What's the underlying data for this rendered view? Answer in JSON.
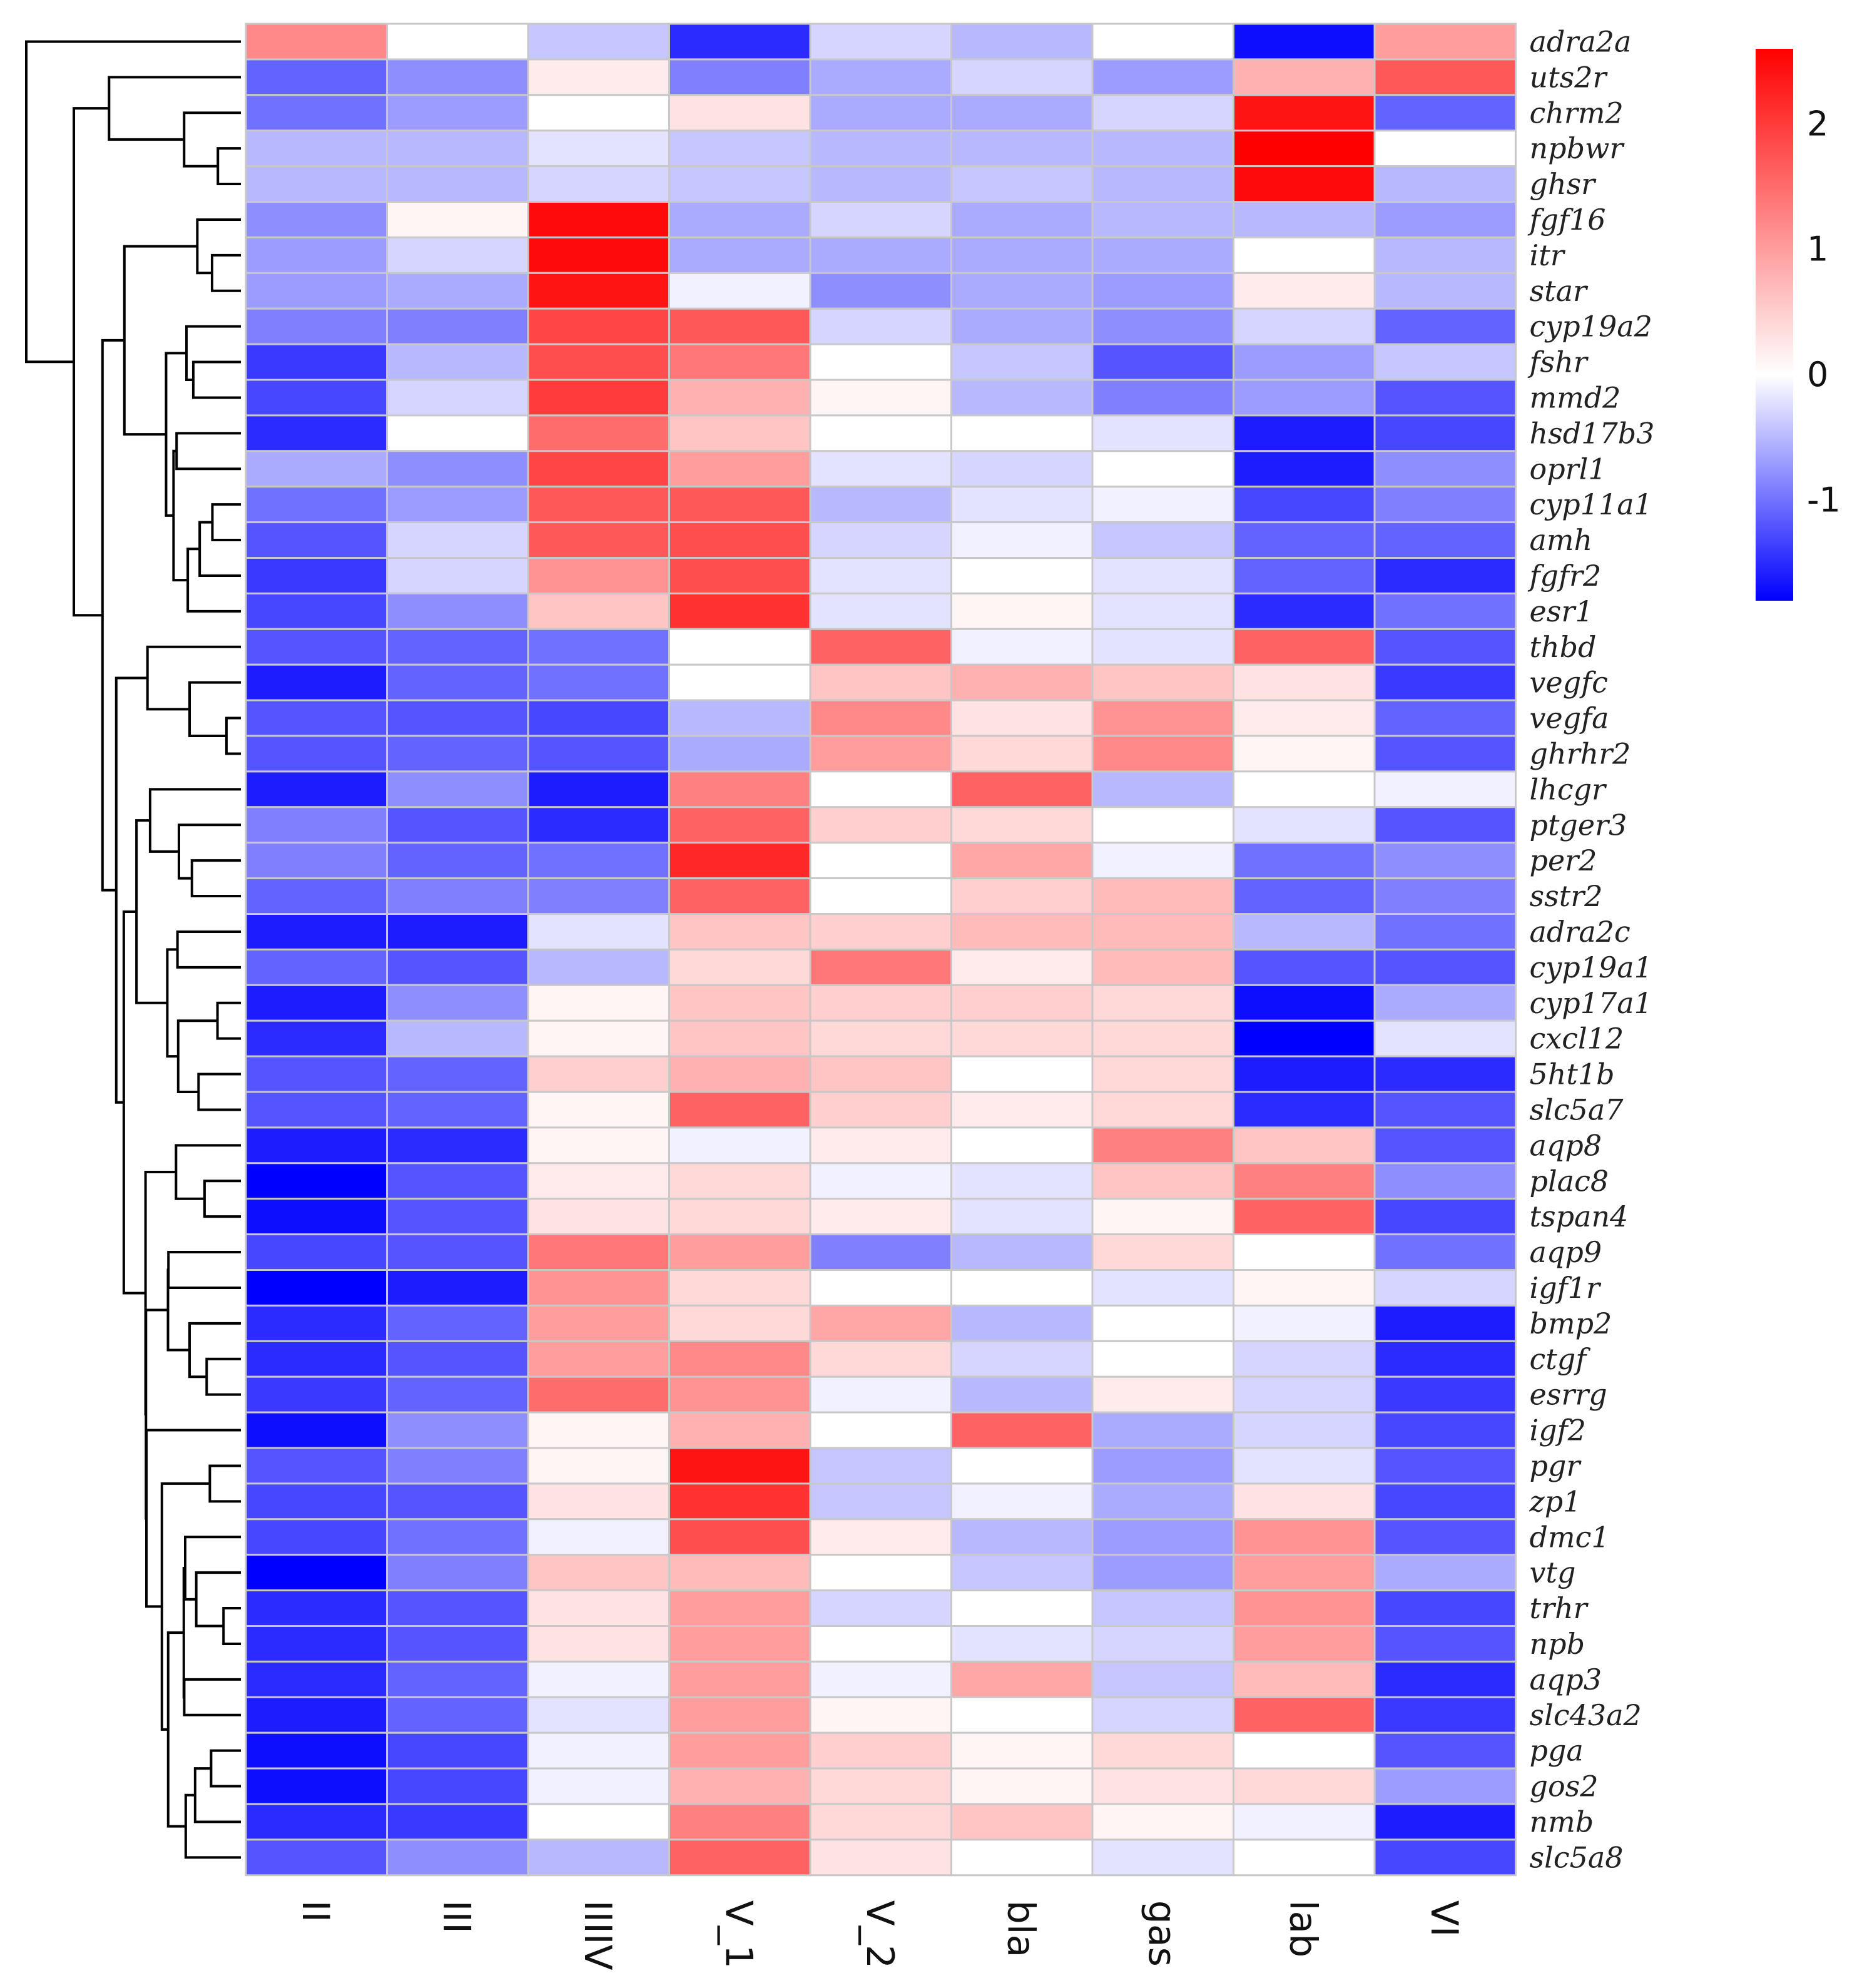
{
  "chart_data": {
    "type": "heatmap",
    "title": "",
    "columns": [
      "II",
      "III",
      "IIIIV",
      "V_1",
      "V_2",
      "bla",
      "gas",
      "lab",
      "VI"
    ],
    "rows": [
      "adra2a",
      "uts2r",
      "chrm2",
      "npbwr",
      "ghsr",
      "fgf16",
      "itr",
      "star",
      "cyp19a2",
      "fshr",
      "mmd2",
      "hsd17b3",
      "oprl1",
      "cyp11a1",
      "amh",
      "fgfr2",
      "esr1",
      "thbd",
      "vegfc",
      "vegfa",
      "ghrhr2",
      "lhcgr",
      "ptger3",
      "per2",
      "sstr2",
      "adra2c",
      "cyp19a1",
      "cyp17a1",
      "cxcl12",
      "5ht1b",
      "slc5a7",
      "aqp8",
      "plac8",
      "tspan4",
      "aqp9",
      "igf1r",
      "bmp2",
      "ctgf",
      "esrrg",
      "igf2",
      "pgr",
      "zp1",
      "dmc1",
      "vtg",
      "trhr",
      "npb",
      "aqp3",
      "slc43a2",
      "pga",
      "gos2",
      "nmb",
      "slc5a8"
    ],
    "values": [
      [
        1.2,
        0.0,
        -0.4,
        -1.5,
        -0.3,
        -0.5,
        0.0,
        -1.7,
        1.0
      ],
      [
        -1.1,
        -0.8,
        0.2,
        -0.9,
        -0.6,
        -0.3,
        -0.7,
        0.8,
        1.7
      ],
      [
        -1.0,
        -0.7,
        0.0,
        0.3,
        -0.6,
        -0.6,
        -0.3,
        2.4,
        -1.1
      ],
      [
        -0.5,
        -0.5,
        -0.2,
        -0.4,
        -0.5,
        -0.5,
        -0.5,
        2.6,
        0.0
      ],
      [
        -0.5,
        -0.5,
        -0.3,
        -0.4,
        -0.5,
        -0.4,
        -0.5,
        2.5,
        -0.5
      ],
      [
        -0.8,
        0.1,
        2.5,
        -0.6,
        -0.3,
        -0.6,
        -0.5,
        -0.5,
        -0.7
      ],
      [
        -0.7,
        -0.3,
        2.5,
        -0.6,
        -0.6,
        -0.6,
        -0.6,
        0.0,
        -0.5
      ],
      [
        -0.7,
        -0.6,
        2.4,
        -0.1,
        -0.8,
        -0.6,
        -0.7,
        0.2,
        -0.5
      ],
      [
        -0.9,
        -0.9,
        1.9,
        1.7,
        -0.3,
        -0.6,
        -0.8,
        -0.3,
        -1.1
      ],
      [
        -1.4,
        -0.5,
        1.8,
        1.4,
        0.0,
        -0.4,
        -1.2,
        -0.7,
        -0.4
      ],
      [
        -1.3,
        -0.3,
        2.0,
        0.8,
        0.1,
        -0.5,
        -0.9,
        -0.7,
        -1.2
      ],
      [
        -1.5,
        0.0,
        1.5,
        0.6,
        0.0,
        0.0,
        -0.2,
        -1.6,
        -1.3
      ],
      [
        -0.6,
        -0.8,
        1.9,
        1.0,
        -0.2,
        -0.3,
        0.0,
        -1.6,
        -0.8
      ],
      [
        -1.0,
        -0.7,
        1.7,
        1.7,
        -0.5,
        -0.2,
        -0.1,
        -1.3,
        -0.9
      ],
      [
        -1.2,
        -0.3,
        1.7,
        1.8,
        -0.3,
        -0.1,
        -0.4,
        -1.1,
        -1.1
      ],
      [
        -1.4,
        -0.3,
        1.1,
        1.8,
        -0.2,
        0.0,
        -0.2,
        -1.1,
        -1.5
      ],
      [
        -1.3,
        -0.8,
        0.6,
        2.1,
        -0.2,
        0.1,
        -0.2,
        -1.5,
        -1.0
      ],
      [
        -1.2,
        -1.1,
        -1.0,
        0.0,
        1.6,
        -0.1,
        -0.2,
        1.6,
        -1.2
      ],
      [
        -1.6,
        -1.1,
        -1.0,
        0.0,
        0.6,
        0.8,
        0.6,
        0.3,
        -1.4
      ],
      [
        -1.2,
        -1.2,
        -1.3,
        -0.5,
        1.2,
        0.3,
        1.1,
        0.2,
        -1.1
      ],
      [
        -1.2,
        -1.1,
        -1.2,
        -0.6,
        1.0,
        0.4,
        1.2,
        0.1,
        -1.2
      ],
      [
        -1.6,
        -0.8,
        -1.6,
        1.3,
        0.0,
        1.6,
        -0.5,
        0.0,
        -0.1
      ],
      [
        -0.9,
        -1.2,
        -1.5,
        1.6,
        0.5,
        0.4,
        0.0,
        -0.2,
        -1.2
      ],
      [
        -0.9,
        -1.1,
        -1.0,
        2.2,
        0.0,
        0.9,
        -0.1,
        -1.0,
        -0.8
      ],
      [
        -1.1,
        -0.9,
        -0.9,
        1.6,
        0.0,
        0.5,
        0.7,
        -1.1,
        -0.9
      ],
      [
        -1.6,
        -1.6,
        -0.2,
        0.6,
        0.5,
        0.7,
        0.7,
        -0.5,
        -1.0
      ],
      [
        -1.1,
        -1.2,
        -0.5,
        0.4,
        1.4,
        0.2,
        0.7,
        -1.2,
        -1.2
      ],
      [
        -1.6,
        -0.8,
        0.1,
        0.6,
        0.5,
        0.5,
        0.4,
        -1.7,
        -0.6
      ],
      [
        -1.5,
        -0.5,
        0.1,
        0.6,
        0.4,
        0.4,
        0.4,
        -1.8,
        -0.2
      ],
      [
        -1.2,
        -1.1,
        0.5,
        0.8,
        0.6,
        0.0,
        0.4,
        -1.6,
        -1.5
      ],
      [
        -1.2,
        -1.1,
        0.1,
        1.6,
        0.5,
        0.2,
        0.4,
        -1.5,
        -1.2
      ],
      [
        -1.6,
        -1.5,
        0.1,
        -0.1,
        0.2,
        0.0,
        1.3,
        0.6,
        -1.2
      ],
      [
        -1.8,
        -1.2,
        0.2,
        0.4,
        -0.1,
        -0.2,
        0.6,
        1.3,
        -0.8
      ],
      [
        -1.7,
        -1.2,
        0.3,
        0.4,
        0.2,
        -0.2,
        0.1,
        1.6,
        -1.3
      ],
      [
        -1.3,
        -1.2,
        1.4,
        1.0,
        -0.9,
        -0.5,
        0.4,
        0.0,
        -1.0
      ],
      [
        -1.8,
        -1.6,
        1.1,
        0.4,
        0.0,
        0.0,
        -0.2,
        0.1,
        -0.3
      ],
      [
        -1.5,
        -1.1,
        1.0,
        0.4,
        0.9,
        -0.5,
        0.0,
        -0.1,
        -1.6
      ],
      [
        -1.5,
        -1.2,
        1.0,
        1.2,
        0.4,
        -0.3,
        0.0,
        -0.3,
        -1.5
      ],
      [
        -1.4,
        -1.1,
        1.5,
        1.1,
        -0.1,
        -0.5,
        0.2,
        -0.3,
        -1.4
      ],
      [
        -1.7,
        -0.8,
        0.1,
        0.8,
        0.0,
        1.6,
        -0.6,
        -0.3,
        -1.3
      ],
      [
        -1.2,
        -0.9,
        0.1,
        2.4,
        -0.4,
        0.0,
        -0.7,
        -0.2,
        -1.2
      ],
      [
        -1.3,
        -1.2,
        0.3,
        2.1,
        -0.4,
        -0.1,
        -0.6,
        0.3,
        -1.3
      ],
      [
        -1.3,
        -1.0,
        -0.1,
        1.8,
        0.2,
        -0.5,
        -0.7,
        1.1,
        -1.2
      ],
      [
        -1.8,
        -0.9,
        0.6,
        0.7,
        0.0,
        -0.4,
        -0.7,
        1.0,
        -0.6
      ],
      [
        -1.5,
        -1.2,
        0.3,
        1.0,
        -0.3,
        0.0,
        -0.4,
        1.1,
        -1.3
      ],
      [
        -1.5,
        -1.2,
        0.3,
        1.0,
        0.0,
        -0.2,
        -0.3,
        1.0,
        -1.2
      ],
      [
        -1.5,
        -1.1,
        -0.1,
        1.0,
        -0.1,
        0.9,
        -0.4,
        0.7,
        -1.5
      ],
      [
        -1.6,
        -1.1,
        -0.2,
        1.0,
        0.1,
        0.0,
        -0.3,
        1.6,
        -1.4
      ],
      [
        -1.7,
        -1.3,
        -0.1,
        1.0,
        0.5,
        0.1,
        0.4,
        0.0,
        -1.2
      ],
      [
        -1.7,
        -1.3,
        -0.1,
        0.8,
        0.4,
        0.1,
        0.3,
        0.4,
        -0.7
      ],
      [
        -1.5,
        -1.4,
        0.0,
        1.3,
        0.4,
        0.6,
        0.1,
        -0.1,
        -1.6
      ],
      [
        -1.2,
        -0.8,
        -0.5,
        1.6,
        0.3,
        0.0,
        -0.2,
        0.0,
        -1.3
      ]
    ],
    "colorbar": {
      "min": -1.8,
      "max": 2.6,
      "ticks": [
        2,
        1,
        0,
        -1
      ],
      "tick_labels": [
        "2",
        "1",
        "0",
        "-1"
      ],
      "low_color": "#0000ff",
      "mid_color": "#ffffff",
      "high_color": "#ff0000"
    },
    "dendrogram": "rows",
    "legend": "top-right"
  }
}
